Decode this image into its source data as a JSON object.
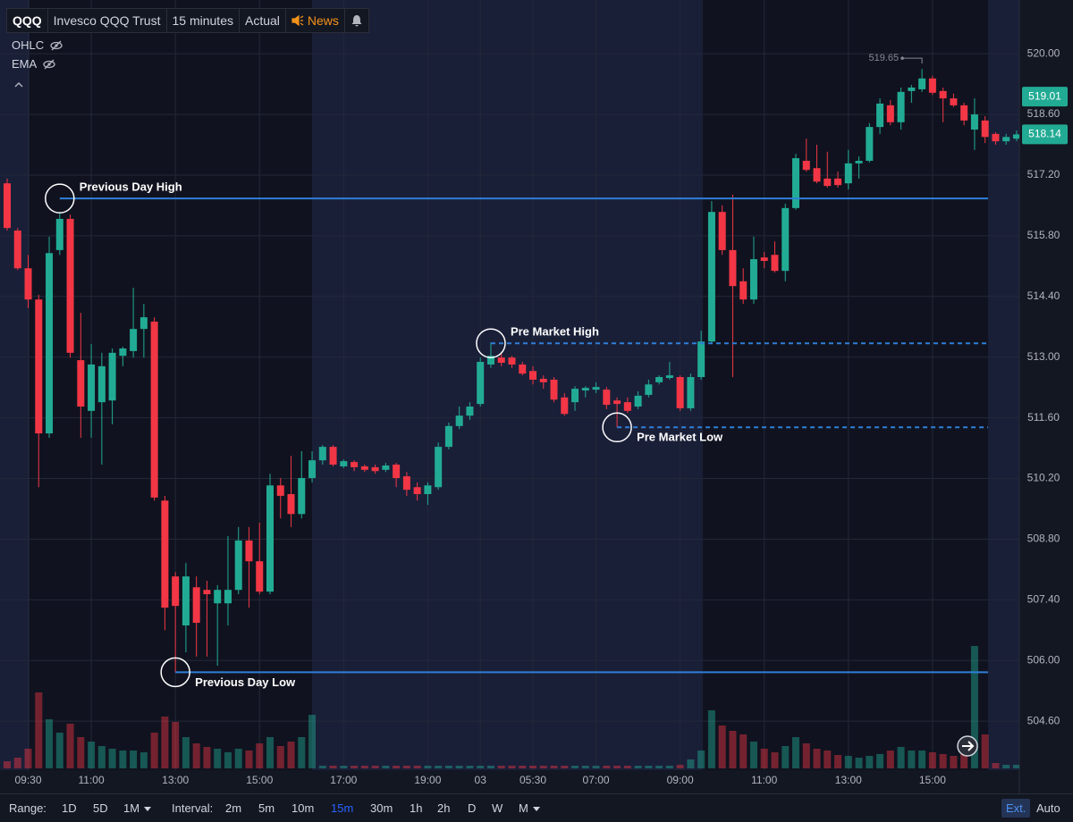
{
  "toolbar": {
    "symbol": "QQQ",
    "name": "Invesco QQQ Trust",
    "interval": "15 minutes",
    "mode": "Actual",
    "news": "News"
  },
  "legend": [
    "OHLC",
    "EMA"
  ],
  "bottom_bar": {
    "range_label": "Range:",
    "ranges": [
      "1D",
      "5D",
      "1M"
    ],
    "interval_label": "Interval:",
    "intervals": [
      "2m",
      "5m",
      "10m",
      "15m",
      "30m",
      "1h",
      "2h",
      "D",
      "W",
      "M"
    ],
    "active_interval": 3,
    "ext": "Ext.",
    "auto": "Auto"
  },
  "chart_data": {
    "type": "candlestick",
    "categories": [
      null,
      null,
      "09:30",
      null,
      null,
      null,
      null,
      null,
      "11:00",
      null,
      null,
      null,
      null,
      null,
      null,
      null,
      "13:00",
      null,
      null,
      null,
      null,
      null,
      null,
      null,
      "15:00",
      null,
      null,
      null,
      null,
      null,
      null,
      null,
      "17:00",
      null,
      null,
      null,
      null,
      null,
      null,
      null,
      "19:00",
      null,
      null,
      null,
      null,
      "03",
      null,
      null,
      null,
      null,
      "05:30",
      null,
      null,
      null,
      null,
      null,
      "07:00",
      null,
      null,
      null,
      null,
      null,
      null,
      null,
      "09:00",
      null,
      null,
      null,
      null,
      null,
      null,
      null,
      "11:00",
      null,
      null,
      null,
      null,
      null,
      null,
      null,
      "13:00",
      null,
      null,
      null,
      null,
      null,
      null,
      null,
      "15:00",
      null,
      null,
      null,
      null,
      null,
      null,
      null,
      null
    ],
    "open": [
      517.01,
      515.92,
      515.05,
      514.33,
      511.24,
      515.47,
      516.19,
      512.93,
      511.76,
      511.96,
      512.0,
      513.03,
      513.14,
      513.65,
      513.82,
      509.69,
      507.94,
      506.81,
      507.69,
      507.63,
      507.32,
      507.32,
      507.63,
      508.77,
      508.29,
      507.59,
      510.04,
      509.84,
      509.38,
      510.21,
      510.62,
      510.93,
      510.48,
      510.58,
      510.48,
      510.46,
      510.4,
      510.52,
      510.25,
      510.0,
      509.84,
      510.0,
      510.93,
      511.41,
      511.65,
      511.92,
      512.83,
      512.99,
      512.99,
      512.83,
      512.68,
      512.5,
      512.48,
      512.07,
      511.96,
      512.23,
      512.25,
      512.25,
      512.0,
      511.96,
      511.86,
      512.13,
      512.42,
      512.52,
      512.54,
      511.82,
      512.54,
      513.36,
      516.35,
      515.47,
      514.75,
      514.33,
      515.3,
      515.36,
      514.99,
      516.44,
      517.53,
      517.36,
      517.12,
      517.12,
      517.01,
      517.47,
      517.53,
      518.31,
      518.81,
      518.42,
      519.14,
      519.18,
      519.43,
      519.14,
      518.97,
      518.81,
      518.25,
      518.46,
      518.15,
      517.98,
      518.04
    ],
    "high": [
      517.12,
      515.98,
      515.36,
      514.44,
      515.78,
      516.33,
      516.29,
      514.02,
      513.3,
      513.1,
      513.2,
      513.24,
      514.6,
      514.23,
      513.92,
      509.8,
      508.04,
      508.25,
      507.94,
      507.84,
      507.74,
      508.87,
      509.08,
      509.08,
      509.18,
      510.31,
      510.21,
      510.72,
      510.83,
      510.83,
      510.97,
      510.97,
      510.64,
      510.62,
      510.52,
      510.52,
      510.56,
      510.56,
      510.35,
      510.11,
      510.11,
      511.03,
      511.49,
      511.86,
      511.96,
      512.99,
      513.34,
      513.08,
      513.03,
      512.89,
      512.79,
      512.58,
      512.54,
      512.17,
      512.33,
      512.33,
      512.42,
      512.31,
      512.07,
      512.07,
      512.21,
      512.48,
      512.58,
      512.89,
      512.58,
      512.62,
      513.61,
      516.6,
      516.5,
      516.75,
      515.05,
      515.78,
      515.43,
      515.67,
      516.54,
      517.69,
      518.04,
      517.9,
      517.74,
      517.28,
      517.78,
      517.63,
      518.4,
      518.97,
      518.93,
      519.22,
      519.28,
      519.65,
      519.49,
      519.22,
      519.08,
      518.87,
      518.97,
      518.56,
      518.19,
      518.15,
      518.23
    ],
    "low": [
      515.92,
      515.01,
      514.13,
      510.0,
      511.14,
      515.36,
      512.99,
      511.14,
      511.14,
      510.52,
      511.45,
      512.79,
      512.99,
      512.99,
      509.69,
      506.7,
      505.73,
      506.19,
      506.09,
      506.09,
      505.88,
      506.81,
      507.53,
      507.22,
      507.53,
      507.53,
      509.28,
      509.08,
      509.28,
      510.11,
      510.52,
      510.48,
      510.44,
      510.37,
      510.35,
      510.31,
      510.35,
      510.0,
      509.8,
      509.69,
      509.59,
      509.94,
      510.87,
      511.34,
      511.55,
      511.86,
      512.75,
      512.79,
      512.75,
      512.58,
      512.37,
      512.27,
      511.96,
      511.65,
      511.76,
      512.07,
      512.17,
      511.8,
      511.38,
      511.71,
      511.8,
      512.07,
      512.37,
      512.48,
      511.76,
      511.76,
      512.48,
      513.3,
      515.36,
      512.54,
      514.23,
      514.23,
      515.05,
      514.95,
      514.75,
      516.4,
      517.28,
      517.01,
      516.91,
      516.91,
      516.87,
      517.12,
      517.49,
      518.15,
      518.35,
      518.25,
      518.87,
      519.12,
      519.05,
      518.42,
      518.77,
      518.35,
      517.78,
      517.94,
      517.9,
      517.9,
      517.98
    ],
    "close": [
      515.98,
      515.05,
      514.33,
      511.24,
      515.4,
      516.19,
      513.1,
      511.86,
      512.83,
      512.79,
      513.1,
      513.2,
      513.65,
      513.92,
      509.76,
      507.22,
      507.26,
      507.94,
      506.87,
      507.53,
      507.63,
      507.63,
      508.77,
      508.29,
      507.59,
      510.04,
      509.8,
      509.38,
      510.21,
      510.62,
      510.93,
      510.52,
      510.6,
      510.46,
      510.4,
      510.37,
      510.5,
      510.21,
      509.94,
      509.84,
      510.04,
      510.93,
      511.41,
      511.65,
      511.86,
      512.89,
      513.03,
      512.87,
      512.83,
      512.62,
      512.48,
      512.42,
      512.02,
      511.69,
      512.27,
      512.29,
      512.31,
      511.9,
      511.92,
      511.76,
      512.11,
      512.37,
      512.54,
      512.58,
      511.82,
      512.54,
      513.36,
      516.35,
      515.47,
      514.64,
      514.33,
      515.26,
      515.22,
      514.99,
      516.44,
      517.59,
      517.32,
      517.05,
      516.95,
      516.97,
      517.47,
      517.53,
      518.31,
      518.85,
      518.42,
      519.12,
      519.22,
      519.43,
      519.1,
      518.97,
      518.81,
      518.46,
      518.6,
      518.08,
      517.98,
      518.08,
      518.14
    ],
    "volume": [
      8,
      12,
      22,
      85,
      55,
      40,
      50,
      35,
      30,
      25,
      22,
      20,
      20,
      18,
      40,
      58,
      52,
      35,
      28,
      24,
      22,
      18,
      22,
      20,
      28,
      35,
      25,
      30,
      35,
      60,
      3,
      3,
      3,
      3,
      3,
      3,
      3,
      3,
      3,
      3,
      3,
      3,
      3,
      3,
      3,
      3,
      3,
      3,
      3,
      3,
      3,
      3,
      3,
      3,
      3,
      3,
      3,
      3,
      3,
      3,
      3,
      3,
      3,
      3,
      4,
      10,
      20,
      65,
      48,
      42,
      38,
      30,
      22,
      18,
      25,
      35,
      28,
      22,
      20,
      15,
      14,
      12,
      14,
      16,
      20,
      24,
      20,
      20,
      18,
      16,
      14,
      20,
      137,
      38,
      6,
      4,
      4
    ],
    "volume_lim": [
      0,
      150
    ],
    "up_color": "#22ab94",
    "down_color": "#f23645",
    "ylim": [
      503.47,
      521.24
    ],
    "yticks": [
      {
        "value": 520,
        "label": "520.00"
      },
      {
        "value": 518.6,
        "label": "518.60"
      },
      {
        "value": 517.2,
        "label": "517.20"
      },
      {
        "value": 515.8,
        "label": "515.80"
      },
      {
        "value": 514.4,
        "label": "514.40"
      },
      {
        "value": 513,
        "label": "513.00"
      },
      {
        "value": 511.6,
        "label": "511.60"
      },
      {
        "value": 510.2,
        "label": "510.20"
      },
      {
        "value": 508.8,
        "label": "508.80"
      },
      {
        "value": 507.4,
        "label": "507.40"
      },
      {
        "value": 506,
        "label": "506.00"
      },
      {
        "value": 504.6,
        "label": "504.60"
      }
    ],
    "grid": true,
    "level_color": "#2f7fd8",
    "levels": [
      {
        "label": "Previous Day High",
        "value": 516.66,
        "start": 5,
        "style": "solid",
        "label_position": "above"
      },
      {
        "label": "Previous Day Low",
        "value": 505.73,
        "start": 16,
        "style": "solid",
        "label_position": "below"
      },
      {
        "label": "Pre Market High",
        "value": 513.32,
        "start": 46,
        "style": "dashed",
        "label_position": "above"
      },
      {
        "label": "Pre Market Low",
        "value": 511.38,
        "start": 58,
        "style": "dashed",
        "label_position": "below"
      }
    ],
    "price_badges": [
      519.01,
      518.14
    ],
    "badge_color": "#22ab94",
    "high_marker": 519.65
  }
}
